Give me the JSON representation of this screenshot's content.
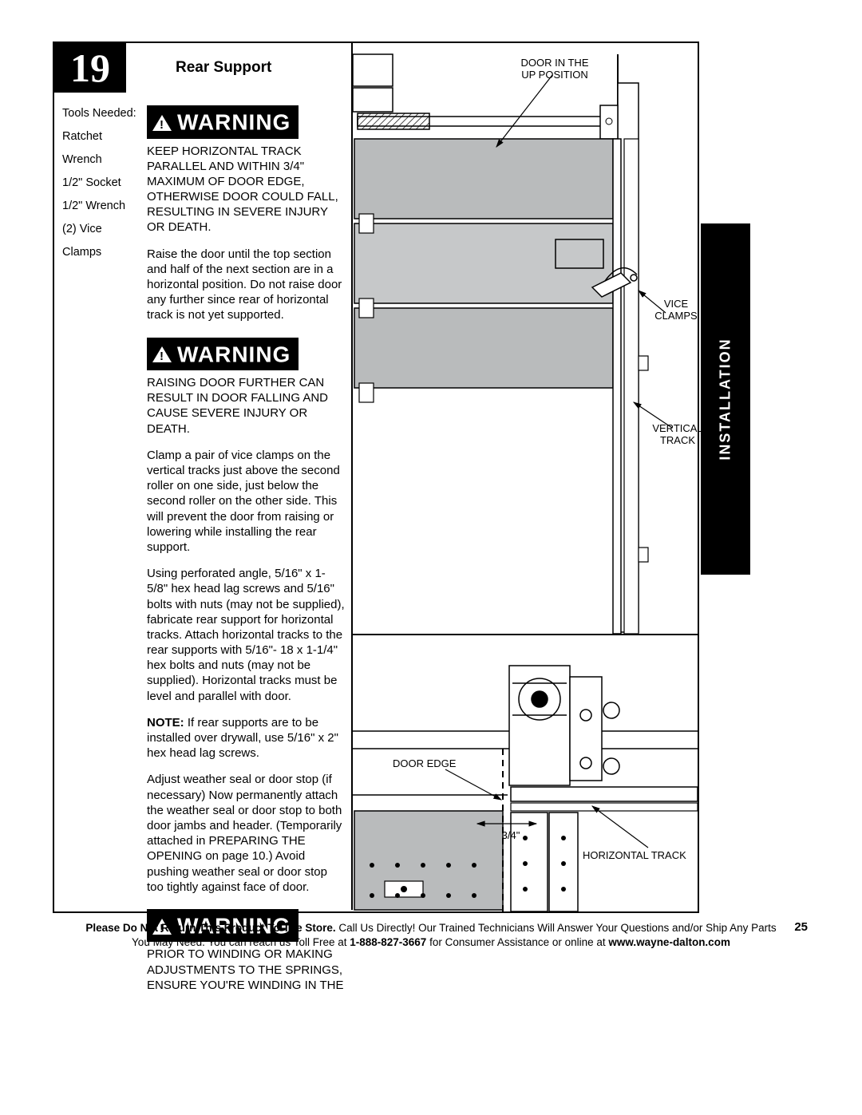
{
  "step_number": "19",
  "step_title": "Rear Support",
  "side_tab": "INSTALLATION",
  "tools_heading": "Tools Needed:",
  "tools": [
    "Ratchet Wrench",
    "1/2\" Socket",
    "1/2\" Wrench",
    "(2) Vice Clamps"
  ],
  "warning_label": "WARNING",
  "warning1_text": "KEEP HORIZONTAL TRACK PARALLEL AND WITHIN 3/4\" MAXIMUM OF DOOR EDGE, OTHERWISE DOOR COULD FALL, RESULTING IN SEVERE INJURY OR DEATH.",
  "para1": "Raise the door until the top section and half of the next section are in a horizontal position. Do not raise door any further since rear of horizontal track is not yet supported.",
  "warning2_text": "RAISING DOOR FURTHER CAN RESULT IN DOOR FALLING AND CAUSE SEVERE INJURY OR DEATH.",
  "para2": "Clamp a pair of vice clamps on the vertical tracks just above the second roller on one side, just below the second roller on the other side. This will prevent the door from raising or lowering while installing the rear support.",
  "para3": "Using perforated angle, 5/16\" x 1-5/8\" hex head lag screws and 5/16\" bolts with nuts (may not be supplied), fabricate rear support for horizontal tracks. Attach horizontal tracks to the rear supports with 5/16\"- 18 x 1-1/4\" hex bolts and nuts (may not be supplied). Horizontal tracks must be level and parallel with door.",
  "note_label": "NOTE:",
  "note_text": " If rear supports are to be installed over drywall, use 5/16\" x 2\" hex head lag screws.",
  "para4": "Adjust weather seal or door stop (if necessary) Now permanently attach the weather seal or door stop to both door jambs and header. (Temporarily attached in PREPARING THE OPENING on page 10.) Avoid pushing weather seal or door stop too tightly against face of door.",
  "warning3_text": "PRIOR TO WINDING OR MAKING ADJUSTMENTS TO THE SPRINGS, ENSURE YOU'RE WINDING IN THE",
  "labels": {
    "door_up": "DOOR IN THE\nUP POSITION",
    "vice_clamps": "VICE\nCLAMPS",
    "vertical_track": "VERTICAL\nTRACK",
    "door_edge": "DOOR EDGE",
    "three_quarter": "3/4\"",
    "horizontal_track": "HORIZONTAL TRACK"
  },
  "footer": {
    "bold1": "Please Do Not Return This Product To The Store.",
    "line1_rest": " Call Us Directly! Our Trained Technicians Will Answer Your Questions and/or Ship Any Parts",
    "line2_a": "You May Need. You can reach us Toll Free at ",
    "phone": "1-888-827-3667",
    "line2_b": " for Consumer Assistance or online at ",
    "url": "www.wayne-dalton.com"
  },
  "page_number": "25",
  "colors": {
    "panel_grey": "#b9bbbc",
    "panel_grey2": "#c6c8c9",
    "line": "#000000"
  }
}
